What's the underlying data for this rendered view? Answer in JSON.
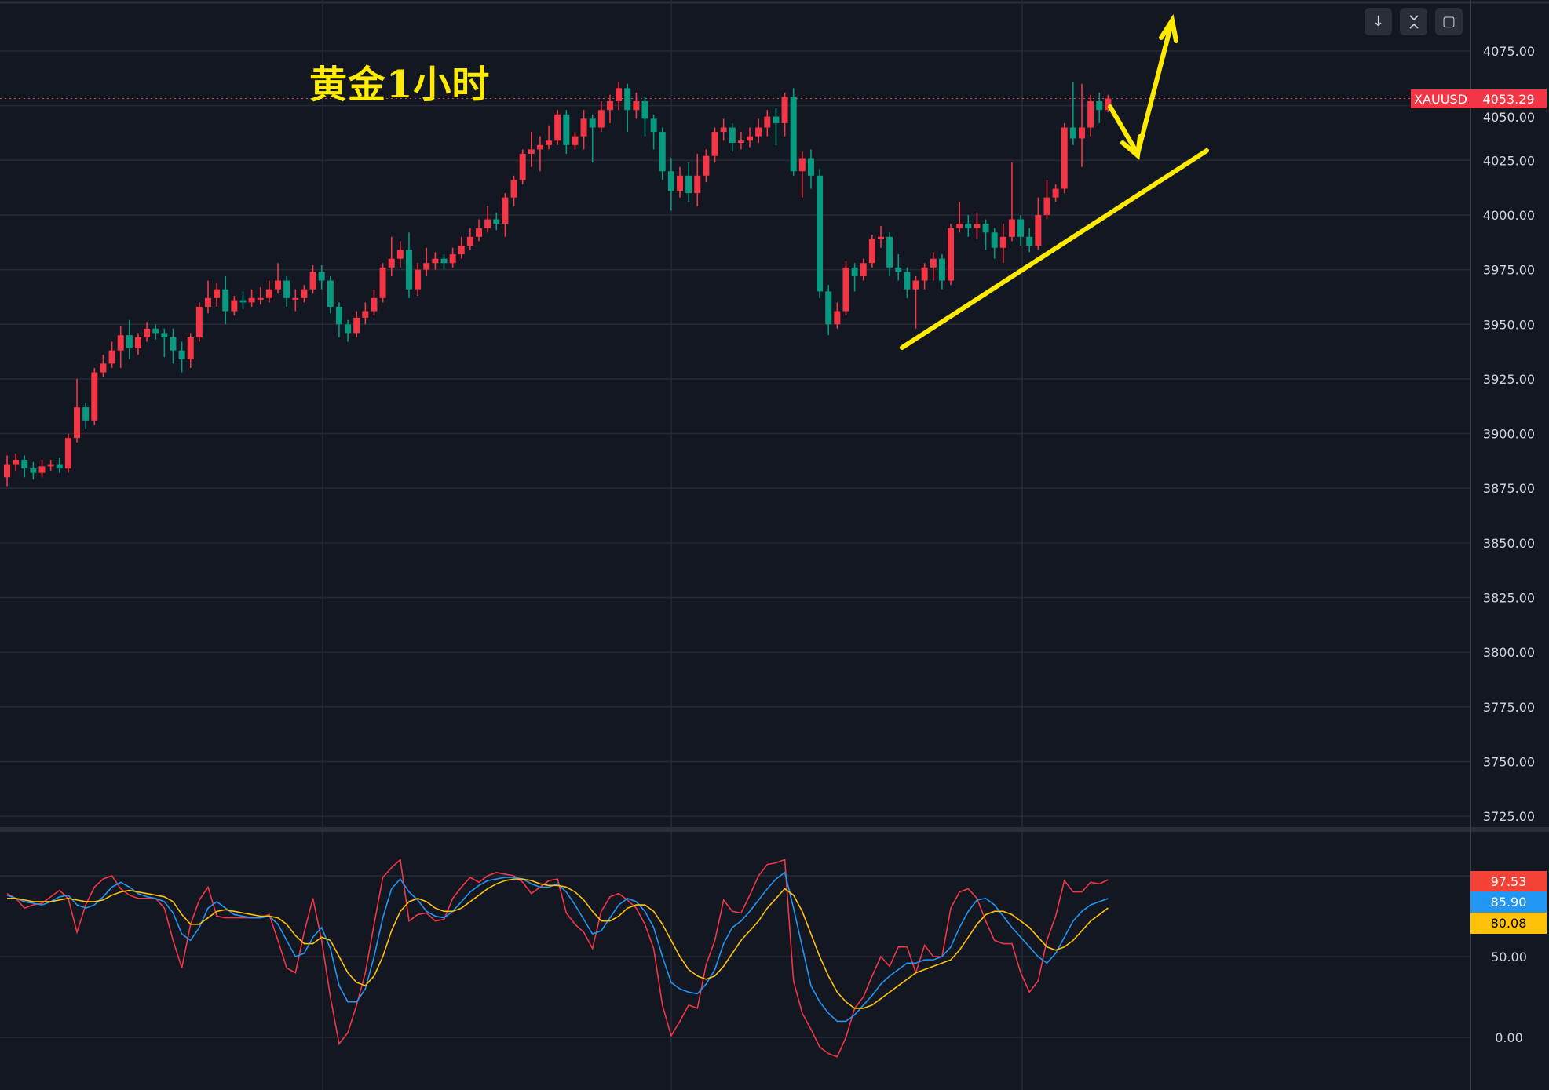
{
  "annotation": {
    "title": "黄金1小时",
    "color": "#ffeb00"
  },
  "toolbar": {
    "buttons": [
      {
        "icon": "arrow-down-icon",
        "glyph": "↓"
      },
      {
        "icon": "collapse-icon",
        "glyph": "⌅"
      },
      {
        "icon": "fullscreen-icon",
        "glyph": "▢"
      }
    ]
  },
  "symbol": {
    "name": "XAUUSD",
    "last_price": "4053.29"
  },
  "colors": {
    "background": "#131722",
    "up": "#f23645",
    "down": "#089981",
    "grid": "#262a35",
    "annotation": "#ffeb00"
  },
  "chart_data": [
    {
      "type": "candlestick",
      "symbol": "XAUUSD",
      "timeframe": "1h",
      "ylim": [
        3720,
        4085
      ],
      "y_ticks": [
        "4075.00",
        "4050.00",
        "4025.00",
        "4000.00",
        "3975.00",
        "3950.00",
        "3925.00",
        "3900.00",
        "3875.00",
        "3850.00",
        "3825.00",
        "3800.00",
        "3775.00",
        "3750.00",
        "3725.00"
      ],
      "grid": true,
      "last_price": 4053.29,
      "ohlc": [
        [
          3880,
          3890,
          3876,
          3886
        ],
        [
          3886,
          3891,
          3883,
          3888
        ],
        [
          3888,
          3890,
          3880,
          3884
        ],
        [
          3884,
          3887,
          3879,
          3882
        ],
        [
          3882,
          3888,
          3880,
          3885
        ],
        [
          3885,
          3888,
          3883,
          3886
        ],
        [
          3886,
          3889,
          3882,
          3884
        ],
        [
          3884,
          3900,
          3882,
          3898
        ],
        [
          3898,
          3925,
          3896,
          3912
        ],
        [
          3912,
          3914,
          3902,
          3906
        ],
        [
          3906,
          3930,
          3904,
          3928
        ],
        [
          3928,
          3936,
          3926,
          3932
        ],
        [
          3932,
          3942,
          3930,
          3938
        ],
        [
          3938,
          3949,
          3930,
          3945
        ],
        [
          3945,
          3952,
          3934,
          3939
        ],
        [
          3939,
          3946,
          3936,
          3944
        ],
        [
          3944,
          3951,
          3942,
          3948
        ],
        [
          3948,
          3950,
          3943,
          3946
        ],
        [
          3946,
          3948,
          3935,
          3944
        ],
        [
          3944,
          3948,
          3932,
          3938
        ],
        [
          3938,
          3942,
          3928,
          3934
        ],
        [
          3934,
          3946,
          3930,
          3944
        ],
        [
          3944,
          3960,
          3942,
          3958
        ],
        [
          3958,
          3970,
          3955,
          3962
        ],
        [
          3962,
          3969,
          3958,
          3966
        ],
        [
          3966,
          3972,
          3950,
          3956
        ],
        [
          3956,
          3963,
          3954,
          3961
        ],
        [
          3961,
          3965,
          3957,
          3960
        ],
        [
          3960,
          3966,
          3958,
          3962
        ],
        [
          3962,
          3967,
          3959,
          3962
        ],
        [
          3962,
          3970,
          3960,
          3966
        ],
        [
          3966,
          3978,
          3964,
          3970
        ],
        [
          3970,
          3972,
          3958,
          3962
        ],
        [
          3962,
          3966,
          3956,
          3962
        ],
        [
          3962,
          3968,
          3960,
          3966
        ],
        [
          3966,
          3977,
          3964,
          3974
        ],
        [
          3974,
          3977,
          3966,
          3970
        ],
        [
          3970,
          3972,
          3955,
          3958
        ],
        [
          3958,
          3960,
          3944,
          3950
        ],
        [
          3950,
          3952,
          3942,
          3946
        ],
        [
          3946,
          3956,
          3944,
          3953
        ],
        [
          3953,
          3960,
          3950,
          3956
        ],
        [
          3956,
          3966,
          3954,
          3962
        ],
        [
          3962,
          3978,
          3960,
          3976
        ],
        [
          3976,
          3990,
          3972,
          3980
        ],
        [
          3980,
          3988,
          3976,
          3984
        ],
        [
          3984,
          3992,
          3962,
          3966
        ],
        [
          3966,
          3978,
          3963,
          3975
        ],
        [
          3975,
          3985,
          3972,
          3978
        ],
        [
          3978,
          3983,
          3975,
          3980
        ],
        [
          3980,
          3982,
          3975,
          3978
        ],
        [
          3978,
          3985,
          3976,
          3982
        ],
        [
          3982,
          3990,
          3980,
          3986
        ],
        [
          3986,
          3994,
          3984,
          3990
        ],
        [
          3990,
          3998,
          3988,
          3994
        ],
        [
          3994,
          4004,
          3992,
          3998
        ],
        [
          3998,
          4001,
          3993,
          3996
        ],
        [
          3996,
          4010,
          3990,
          4008
        ],
        [
          4008,
          4018,
          4004,
          4016
        ],
        [
          4016,
          4030,
          4014,
          4028
        ],
        [
          4028,
          4038,
          4022,
          4030
        ],
        [
          4030,
          4036,
          4020,
          4032
        ],
        [
          4032,
          4041,
          4030,
          4034
        ],
        [
          4034,
          4048,
          4032,
          4046
        ],
        [
          4046,
          4048,
          4028,
          4032
        ],
        [
          4032,
          4038,
          4030,
          4036
        ],
        [
          4036,
          4048,
          4030,
          4044
        ],
        [
          4044,
          4046,
          4024,
          4040
        ],
        [
          4040,
          4052,
          4038,
          4048
        ],
        [
          4048,
          4055,
          4042,
          4052
        ],
        [
          4052,
          4061,
          4048,
          4058
        ],
        [
          4058,
          4060,
          4038,
          4048
        ],
        [
          4048,
          4056,
          4044,
          4052
        ],
        [
          4052,
          4054,
          4036,
          4044
        ],
        [
          4044,
          4046,
          4030,
          4038
        ],
        [
          4038,
          4040,
          4016,
          4020
        ],
        [
          4020,
          4026,
          4002,
          4011
        ],
        [
          4011,
          4022,
          4008,
          4018
        ],
        [
          4018,
          4024,
          4006,
          4010
        ],
        [
          4010,
          4028,
          4004,
          4018
        ],
        [
          4018,
          4030,
          4015,
          4027
        ],
        [
          4027,
          4040,
          4024,
          4038
        ],
        [
          4038,
          4044,
          4034,
          4040
        ],
        [
          4040,
          4042,
          4029,
          4033
        ],
        [
          4033,
          4038,
          4030,
          4034
        ],
        [
          4034,
          4040,
          4031,
          4036
        ],
        [
          4036,
          4044,
          4033,
          4040
        ],
        [
          4040,
          4048,
          4036,
          4045
        ],
        [
          4045,
          4049,
          4032,
          4042
        ],
        [
          4042,
          4056,
          4036,
          4054
        ],
        [
          4054,
          4058,
          4018,
          4020
        ],
        [
          4020,
          4029,
          4008,
          4026
        ],
        [
          4026,
          4030,
          4012,
          4018
        ],
        [
          4018,
          4021,
          3962,
          3965
        ],
        [
          3965,
          3968,
          3945,
          3950
        ],
        [
          3950,
          3960,
          3948,
          3956
        ],
        [
          3956,
          3979,
          3954,
          3976
        ],
        [
          3976,
          3978,
          3965,
          3972
        ],
        [
          3972,
          3980,
          3970,
          3978
        ],
        [
          3978,
          3991,
          3976,
          3989
        ],
        [
          3989,
          3995,
          3985,
          3990
        ],
        [
          3990,
          3992,
          3972,
          3976
        ],
        [
          3976,
          3982,
          3970,
          3974
        ],
        [
          3974,
          3976,
          3962,
          3966
        ],
        [
          3966,
          3972,
          3948,
          3970
        ],
        [
          3970,
          3978,
          3966,
          3976
        ],
        [
          3976,
          3983,
          3970,
          3980
        ],
        [
          3980,
          3982,
          3966,
          3970
        ],
        [
          3970,
          3996,
          3968,
          3994
        ],
        [
          3994,
          4006,
          3992,
          3996
        ],
        [
          3996,
          4000,
          3990,
          3994
        ],
        [
          3994,
          4001,
          3989,
          3996
        ],
        [
          3996,
          3998,
          3984,
          3992
        ],
        [
          3992,
          3994,
          3980,
          3985
        ],
        [
          3985,
          3996,
          3978,
          3990
        ],
        [
          3990,
          4024,
          3988,
          3998
        ],
        [
          3998,
          4000,
          3986,
          3990
        ],
        [
          3990,
          3994,
          3983,
          3986
        ],
        [
          3986,
          4008,
          3984,
          4000
        ],
        [
          4000,
          4016,
          3998,
          4008
        ],
        [
          4008,
          4014,
          4006,
          4012
        ],
        [
          4012,
          4042,
          4010,
          4040
        ],
        [
          4040,
          4061,
          4032,
          4035
        ],
        [
          4035,
          4060,
          4022,
          4040
        ],
        [
          4040,
          4055,
          4036,
          4052
        ],
        [
          4052,
          4056,
          4042,
          4048
        ],
        [
          4048,
          4055,
          4047,
          4053.29
        ]
      ]
    },
    {
      "type": "line",
      "ylim": [
        -20,
        125
      ],
      "y_ticks": [
        "50.00",
        "0.00"
      ],
      "grid": true,
      "series": [
        {
          "color": "#f23645",
          "last": "97.53",
          "values": [
            89,
            86,
            80,
            82,
            83,
            87,
            91,
            86,
            65,
            82,
            93,
            98,
            100,
            92,
            88,
            86,
            86,
            86,
            80,
            60,
            43,
            70,
            85,
            93,
            75,
            74,
            74,
            74,
            74,
            74,
            76,
            60,
            43,
            40,
            65,
            86,
            60,
            25,
            -4,
            3,
            20,
            40,
            70,
            99,
            105,
            110,
            72,
            76,
            77,
            72,
            73,
            86,
            93,
            99,
            96,
            100,
            102,
            101,
            100,
            96,
            89,
            93,
            97,
            98,
            77,
            70,
            65,
            55,
            78,
            87,
            89,
            85,
            80,
            70,
            55,
            20,
            1,
            10,
            20,
            18,
            45,
            60,
            85,
            78,
            77,
            88,
            100,
            107,
            108,
            110,
            35,
            15,
            5,
            -6,
            -10,
            -12,
            0,
            18,
            25,
            38,
            50,
            44,
            56,
            56,
            40,
            57,
            50,
            50,
            80,
            90,
            92,
            86,
            72,
            60,
            58,
            58,
            40,
            28,
            35,
            60,
            75,
            97,
            90,
            90,
            96,
            95,
            97.53
          ]
        },
        {
          "color": "#2196f3",
          "last": "85.90",
          "values": [
            88,
            86,
            84,
            83,
            82,
            84,
            87,
            88,
            82,
            80,
            82,
            87,
            93,
            96,
            93,
            89,
            87,
            86,
            84,
            77,
            64,
            60,
            68,
            80,
            84,
            80,
            76,
            75,
            74,
            74,
            75,
            70,
            60,
            50,
            52,
            62,
            68,
            55,
            32,
            22,
            22,
            30,
            50,
            74,
            92,
            98,
            90,
            85,
            78,
            75,
            74,
            78,
            84,
            90,
            94,
            97,
            98,
            99,
            99,
            98,
            95,
            93,
            93,
            95,
            90,
            82,
            73,
            64,
            66,
            74,
            82,
            86,
            84,
            78,
            68,
            50,
            34,
            30,
            28,
            27,
            33,
            42,
            58,
            68,
            72,
            78,
            85,
            92,
            98,
            102,
            80,
            56,
            32,
            22,
            15,
            10,
            10,
            14,
            20,
            26,
            33,
            38,
            42,
            46,
            46,
            48,
            48,
            50,
            56,
            68,
            78,
            85,
            86,
            82,
            75,
            68,
            62,
            56,
            50,
            46,
            52,
            62,
            72,
            78,
            82,
            84,
            85.9
          ]
        },
        {
          "color": "#ffc107",
          "last": "80.08",
          "values": [
            86,
            86,
            85,
            84,
            84,
            84,
            85,
            86,
            85,
            84,
            84,
            85,
            88,
            90,
            91,
            90,
            89,
            88,
            87,
            84,
            76,
            70,
            70,
            74,
            78,
            79,
            78,
            77,
            76,
            75,
            75,
            74,
            70,
            63,
            58,
            58,
            62,
            60,
            50,
            40,
            34,
            32,
            38,
            50,
            66,
            78,
            84,
            86,
            84,
            80,
            78,
            78,
            80,
            84,
            88,
            92,
            95,
            97,
            98,
            98,
            97,
            95,
            94,
            94,
            93,
            90,
            85,
            78,
            72,
            72,
            75,
            80,
            82,
            82,
            78,
            70,
            60,
            50,
            42,
            38,
            36,
            38,
            44,
            52,
            60,
            66,
            72,
            80,
            86,
            92,
            88,
            78,
            64,
            50,
            38,
            28,
            22,
            18,
            18,
            20,
            24,
            28,
            32,
            36,
            40,
            42,
            44,
            46,
            48,
            54,
            62,
            70,
            76,
            78,
            78,
            76,
            72,
            68,
            62,
            56,
            54,
            56,
            60,
            66,
            72,
            76,
            80.08
          ]
        }
      ]
    }
  ]
}
